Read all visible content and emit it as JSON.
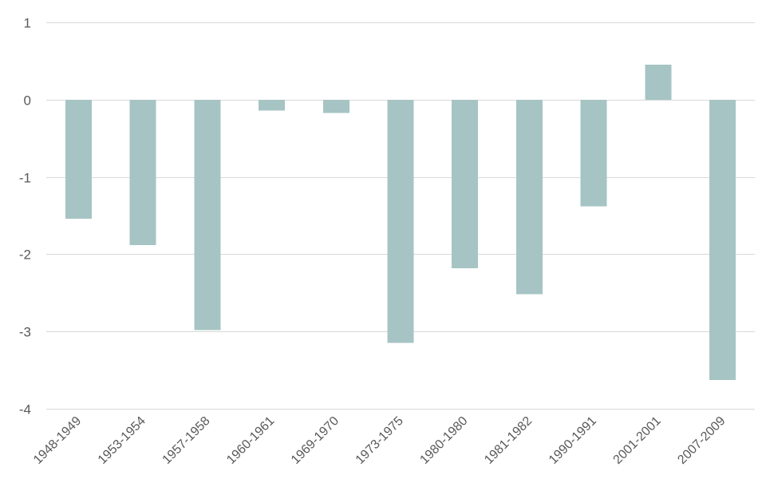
{
  "chart_data": {
    "type": "bar",
    "title": "",
    "xlabel": "",
    "ylabel": "",
    "categories": [
      "1948-1949",
      "1953-1954",
      "1957-1958",
      "1960-1961",
      "1969-1970",
      "1973-1975",
      "1980-1980",
      "1981-1982",
      "1990-1991",
      "2001-2001",
      "2007-2009"
    ],
    "values": [
      -1.54,
      -1.88,
      -2.98,
      -0.14,
      -0.17,
      -3.15,
      -2.18,
      -2.52,
      -1.38,
      0.45,
      -3.63
    ],
    "ylim": [
      -4,
      1
    ],
    "yticks": [
      1,
      0,
      -1,
      -2,
      -3,
      -4
    ],
    "grid": true,
    "legend": "none",
    "bar_color": "#a6c4c3",
    "grid_color": "#d9d9d9",
    "text_color": "#595959"
  }
}
